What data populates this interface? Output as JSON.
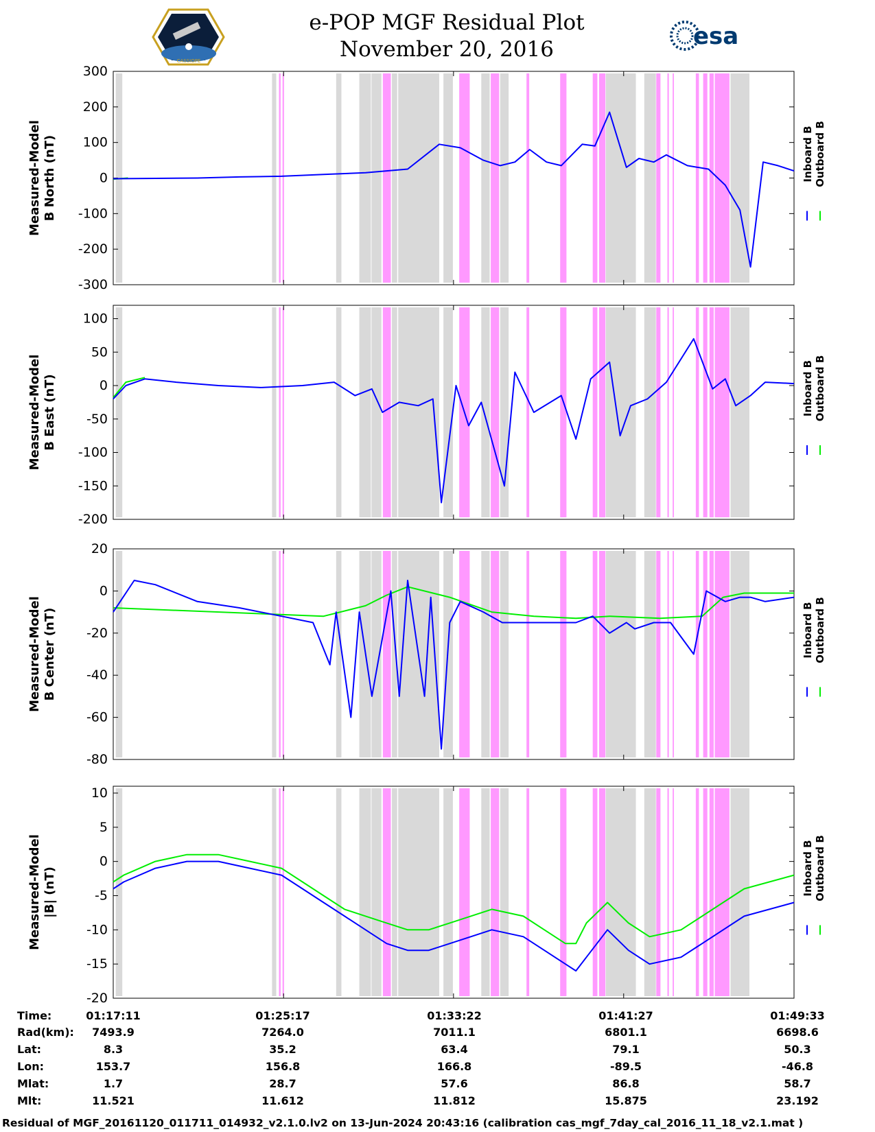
{
  "header": {
    "title_line1": "e-POP MGF Residual Plot",
    "title_line2": "November 20, 2016",
    "logo_left_text": "CASSIOPE",
    "logo_right_text": "esa"
  },
  "legend": {
    "inboard": "Inboard B",
    "outboard": "Outboard B"
  },
  "colors": {
    "inboard": "#0000ff",
    "outboard": "#00ee00",
    "gray_band": "#d9d9d9",
    "pink_band": "#ff99ff"
  },
  "info_table": {
    "row_labels": [
      "Time:",
      "Rad(km):",
      "Lat:",
      "Lon:",
      "Mlat:",
      "Mlt:"
    ],
    "columns": [
      [
        "01:17:11",
        "7493.9",
        "8.3",
        "153.7",
        "1.7",
        "11.521"
      ],
      [
        "01:25:17",
        "7264.0",
        "35.2",
        "156.8",
        "28.7",
        "11.612"
      ],
      [
        "01:33:22",
        "7011.1",
        "63.4",
        "166.8",
        "57.6",
        "11.812"
      ],
      [
        "01:41:27",
        "6801.1",
        "79.1",
        "-89.5",
        "86.8",
        "15.875"
      ],
      [
        "01:49:33",
        "6698.6",
        "50.3",
        "-46.8",
        "58.7",
        "23.192"
      ]
    ]
  },
  "footer": "Residual of MGF_20161120_011711_014932_v2.1.0.lv2 on 13-Jun-2024 20:43:16 (calibration cas_mgf_7day_cal_2016_11_18_v2.1.mat )",
  "chart_data": [
    {
      "type": "line",
      "ylabel_line1": "Measured-Model",
      "ylabel_line2": "B North (nT)",
      "ylim": [
        -300,
        300
      ],
      "yticks": [
        300,
        200,
        100,
        0,
        -100,
        -200,
        -300
      ],
      "x_unit": "minutes since 01:17:11",
      "xlim": [
        0,
        32.37
      ],
      "series": [
        {
          "name": "Inboard B",
          "x": [
            0,
            2,
            4,
            6,
            8,
            10,
            12,
            14,
            15.5,
            16.5,
            17.6,
            18.4,
            19.1,
            19.8,
            20.6,
            21.3,
            22.3,
            22.9,
            23.6,
            24.4,
            25,
            25.7,
            26.3,
            27.3,
            28.3,
            29.1,
            29.8,
            30.3,
            30.9,
            31.6,
            32.37
          ],
          "y": [
            -2,
            -1,
            0,
            3,
            5,
            10,
            15,
            25,
            95,
            85,
            50,
            35,
            45,
            80,
            45,
            35,
            95,
            90,
            185,
            30,
            55,
            45,
            65,
            35,
            25,
            -20,
            -90,
            -250,
            45,
            35,
            20
          ]
        },
        {
          "name": "Outboard B",
          "x": [
            0,
            0.7
          ],
          "y": [
            -3,
            0
          ]
        }
      ]
    },
    {
      "type": "line",
      "ylabel_line1": "Measured-Model",
      "ylabel_line2": "B East (nT)",
      "ylim": [
        -200,
        120
      ],
      "yticks": [
        100,
        50,
        0,
        -50,
        -100,
        -150,
        -200
      ],
      "x_unit": "minutes since 01:17:11",
      "xlim": [
        0,
        32.37
      ],
      "series": [
        {
          "name": "Inboard B",
          "x": [
            0,
            0.6,
            1.5,
            3,
            5,
            7,
            9,
            10.5,
            11.5,
            12.3,
            12.8,
            13.6,
            14.5,
            15.2,
            15.6,
            16.3,
            16.9,
            17.5,
            18.6,
            19.1,
            20,
            21.3,
            22,
            22.7,
            23.6,
            24.1,
            24.6,
            25.4,
            26.3,
            27.6,
            28.5,
            29.1,
            29.6,
            30.3,
            31,
            32.37
          ],
          "y": [
            -20,
            0,
            10,
            5,
            0,
            -3,
            0,
            5,
            -15,
            -5,
            -40,
            -25,
            -30,
            -20,
            -175,
            0,
            -60,
            -25,
            -150,
            20,
            -40,
            -15,
            -80,
            10,
            35,
            -75,
            -30,
            -20,
            5,
            70,
            -5,
            10,
            -30,
            -15,
            5,
            3
          ]
        },
        {
          "name": "Outboard B",
          "x": [
            0,
            0.6,
            1.5
          ],
          "y": [
            -18,
            5,
            12
          ]
        }
      ]
    },
    {
      "type": "line",
      "ylabel_line1": "Measured-Model",
      "ylabel_line2": "B Center (nT)",
      "ylim": [
        -80,
        20
      ],
      "yticks": [
        20,
        0,
        -20,
        -40,
        -60,
        -80
      ],
      "x_unit": "minutes since 01:17:11",
      "xlim": [
        0,
        32.37
      ],
      "series": [
        {
          "name": "Inboard B",
          "x": [
            0,
            1,
            2,
            4,
            6,
            8,
            9.5,
            10.3,
            10.6,
            11.3,
            11.7,
            12.3,
            13.2,
            13.6,
            14,
            14.8,
            15.1,
            15.6,
            16,
            16.5,
            17.6,
            18.5,
            20,
            22,
            22.8,
            23.6,
            24.4,
            24.8,
            25.7,
            26.5,
            27.6,
            28.2,
            29.1,
            29.8,
            30.3,
            31,
            32.37
          ],
          "y": [
            -10,
            5,
            3,
            -5,
            -8,
            -12,
            -15,
            -35,
            -10,
            -60,
            -10,
            -50,
            0,
            -50,
            5,
            -50,
            -3,
            -75,
            -15,
            -5,
            -10,
            -15,
            -15,
            -15,
            -12,
            -20,
            -15,
            -18,
            -15,
            -15,
            -30,
            0,
            -5,
            -3,
            -3,
            -5,
            -3
          ]
        },
        {
          "name": "Outboard B",
          "x": [
            0,
            10,
            12,
            13,
            14,
            16,
            18,
            20,
            22,
            23.6,
            26,
            28,
            29,
            30,
            32.37
          ],
          "y": [
            -8,
            -12,
            -7,
            -2,
            2,
            -3,
            -10,
            -12,
            -13,
            -12,
            -13,
            -12,
            -3,
            -1,
            -1
          ]
        }
      ]
    },
    {
      "type": "line",
      "ylabel_line1": "Measured-Model",
      "ylabel_line2": "|B| (nT)",
      "ylim": [
        -20,
        11
      ],
      "yticks": [
        10,
        5,
        0,
        -5,
        -10,
        -15,
        -20
      ],
      "x_unit": "minutes since 01:17:11",
      "xlim": [
        0,
        32.37
      ],
      "series": [
        {
          "name": "Inboard B",
          "x": [
            0,
            0.5,
            2,
            3.5,
            5,
            6.5,
            8,
            9,
            10,
            11,
            12,
            13,
            14,
            15,
            16,
            17,
            18,
            19.5,
            20.5,
            21.5,
            22,
            22.5,
            23.5,
            24.5,
            25.5,
            27,
            28,
            30,
            32.37
          ],
          "y": [
            -4,
            -3,
            -1,
            0,
            0,
            -1,
            -2,
            -4,
            -6,
            -8,
            -10,
            -12,
            -13,
            -13,
            -12,
            -11,
            -10,
            -11,
            -13,
            -15,
            -16,
            -14,
            -10,
            -13,
            -15,
            -14,
            -12,
            -8,
            -6
          ]
        },
        {
          "name": "Outboard B",
          "x": [
            0,
            0.5,
            2,
            3.5,
            5,
            6.5,
            8,
            9,
            10,
            11,
            12,
            13,
            14,
            15,
            16,
            17,
            18,
            19.5,
            20.5,
            21.5,
            22,
            22.5,
            23.5,
            24.5,
            25.5,
            27,
            28,
            30,
            32.37
          ],
          "y": [
            -3,
            -2,
            0,
            1,
            1,
            0,
            -1,
            -3,
            -5,
            -7,
            -8,
            -9,
            -10,
            -10,
            -9,
            -8,
            -7,
            -8,
            -10,
            -12,
            -12,
            -9,
            -6,
            -9,
            -11,
            -10,
            -8,
            -4,
            -2
          ]
        }
      ]
    }
  ]
}
